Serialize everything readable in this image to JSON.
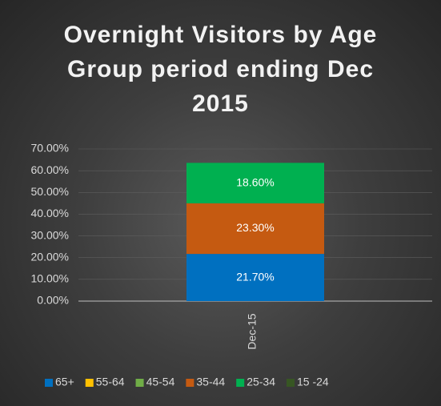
{
  "chart_data": {
    "type": "stacked_bar",
    "title": "Overnight Visitors by Age Group period ending Dec 2015",
    "categories": [
      "Dec-15"
    ],
    "series": [
      {
        "name": "65+",
        "color": "#0070c0",
        "values": [
          21.7
        ],
        "value_labels": [
          "21.70%"
        ]
      },
      {
        "name": "55-64",
        "color": "#ffc000",
        "values": [
          null
        ]
      },
      {
        "name": "45-54",
        "color": "#70ad47",
        "values": [
          null
        ]
      },
      {
        "name": "35-44",
        "color": "#c55a11",
        "values": [
          23.3
        ],
        "value_labels": [
          "23.30%"
        ]
      },
      {
        "name": "25-34",
        "color": "#00b050",
        "values": [
          18.6
        ],
        "value_labels": [
          "18.60%"
        ]
      },
      {
        "name": "15 -24",
        "color": "#375623",
        "values": [
          null
        ]
      }
    ],
    "ylim": [
      0,
      70
    ],
    "yticks": [
      {
        "value": 0,
        "label": "0.00%"
      },
      {
        "value": 10,
        "label": "10.00%"
      },
      {
        "value": 20,
        "label": "20.00%"
      },
      {
        "value": 30,
        "label": "30.00%"
      },
      {
        "value": 40,
        "label": "40.00%"
      },
      {
        "value": 50,
        "label": "50.00%"
      },
      {
        "value": 60,
        "label": "60.00%"
      },
      {
        "value": 70,
        "label": "70.00%"
      }
    ],
    "grid": true
  }
}
